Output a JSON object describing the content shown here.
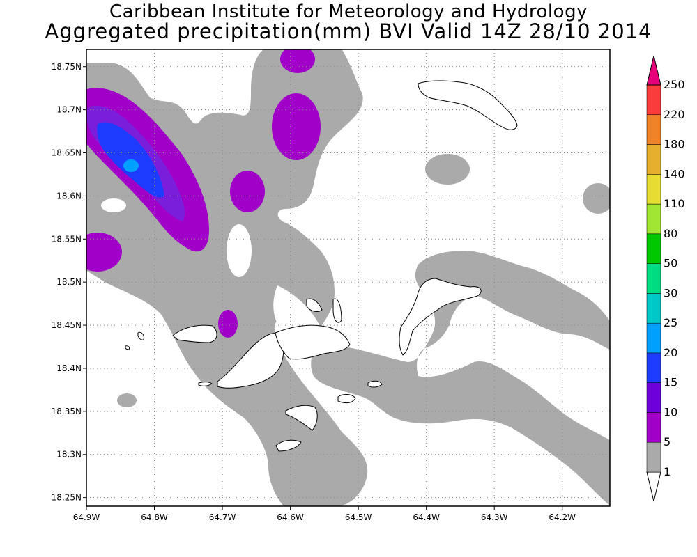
{
  "title": {
    "line1": "Caribbean Institute for Meteorology and Hydrology",
    "line2": "Aggregated precipitation(mm) BVI Valid 14Z 28/10 2014"
  },
  "map": {
    "lon_range": [
      -64.9,
      -64.13
    ],
    "lat_range": [
      18.24,
      18.77
    ],
    "lon_ticks": [
      "64.9W",
      "64.8W",
      "64.7W",
      "64.6W",
      "64.5W",
      "64.4W",
      "64.3W",
      "64.2W"
    ],
    "lat_ticks": [
      "18.75N",
      "18.7N",
      "18.65N",
      "18.6N",
      "18.55N",
      "18.5N",
      "18.45N",
      "18.4N",
      "18.35N",
      "18.3N",
      "18.25N"
    ],
    "grid": "dotted",
    "islands": [
      "island-outline-north",
      "island-outline-west-1",
      "island-outline-west-2",
      "island-outline-central",
      "island-outline-middle",
      "island-outline-east",
      "island-outline-south-1",
      "island-outline-south-2"
    ]
  },
  "colorbar": {
    "labels": [
      "1",
      "5",
      "10",
      "15",
      "20",
      "25",
      "30",
      "50",
      "80",
      "110",
      "140",
      "180",
      "220",
      "250"
    ],
    "colors": [
      "#ffffff",
      "#aaaaaa",
      "#a000c8",
      "#6e00dc",
      "#1e3cff",
      "#00a0ff",
      "#00c8c8",
      "#00dc82",
      "#00c800",
      "#a0e632",
      "#e6dc32",
      "#e6af2d",
      "#f08228",
      "#fa3c3c",
      "#e6007a"
    ]
  },
  "precip_colors": {
    "gray": "#aaaaaa",
    "purple": "#a000c8",
    "violet": "#7a1edc",
    "blue": "#1e3cff",
    "cyan": "#00a0ff"
  }
}
